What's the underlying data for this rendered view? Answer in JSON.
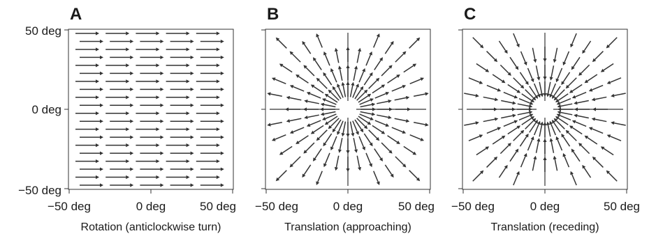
{
  "panels": [
    {
      "letter": "A",
      "caption": "Rotation (anticlockwise turn)",
      "x_ticks": [
        "−50 deg",
        "0 deg",
        "50 deg"
      ],
      "y_ticks": [
        "50 deg",
        "0 deg",
        "−50 deg"
      ],
      "field": "rotation"
    },
    {
      "letter": "B",
      "caption": "Translation (approaching)",
      "x_ticks": [
        "−50 deg",
        "0 deg",
        "50 deg"
      ],
      "field": "expansion"
    },
    {
      "letter": "C",
      "caption": "Translation (receding)",
      "x_ticks": [
        "−50 deg",
        "0 deg",
        "50 deg"
      ],
      "field": "contraction"
    }
  ],
  "colors": {
    "arrow": "#333333",
    "axis": "#333333",
    "text": "#1a1a1a"
  }
}
